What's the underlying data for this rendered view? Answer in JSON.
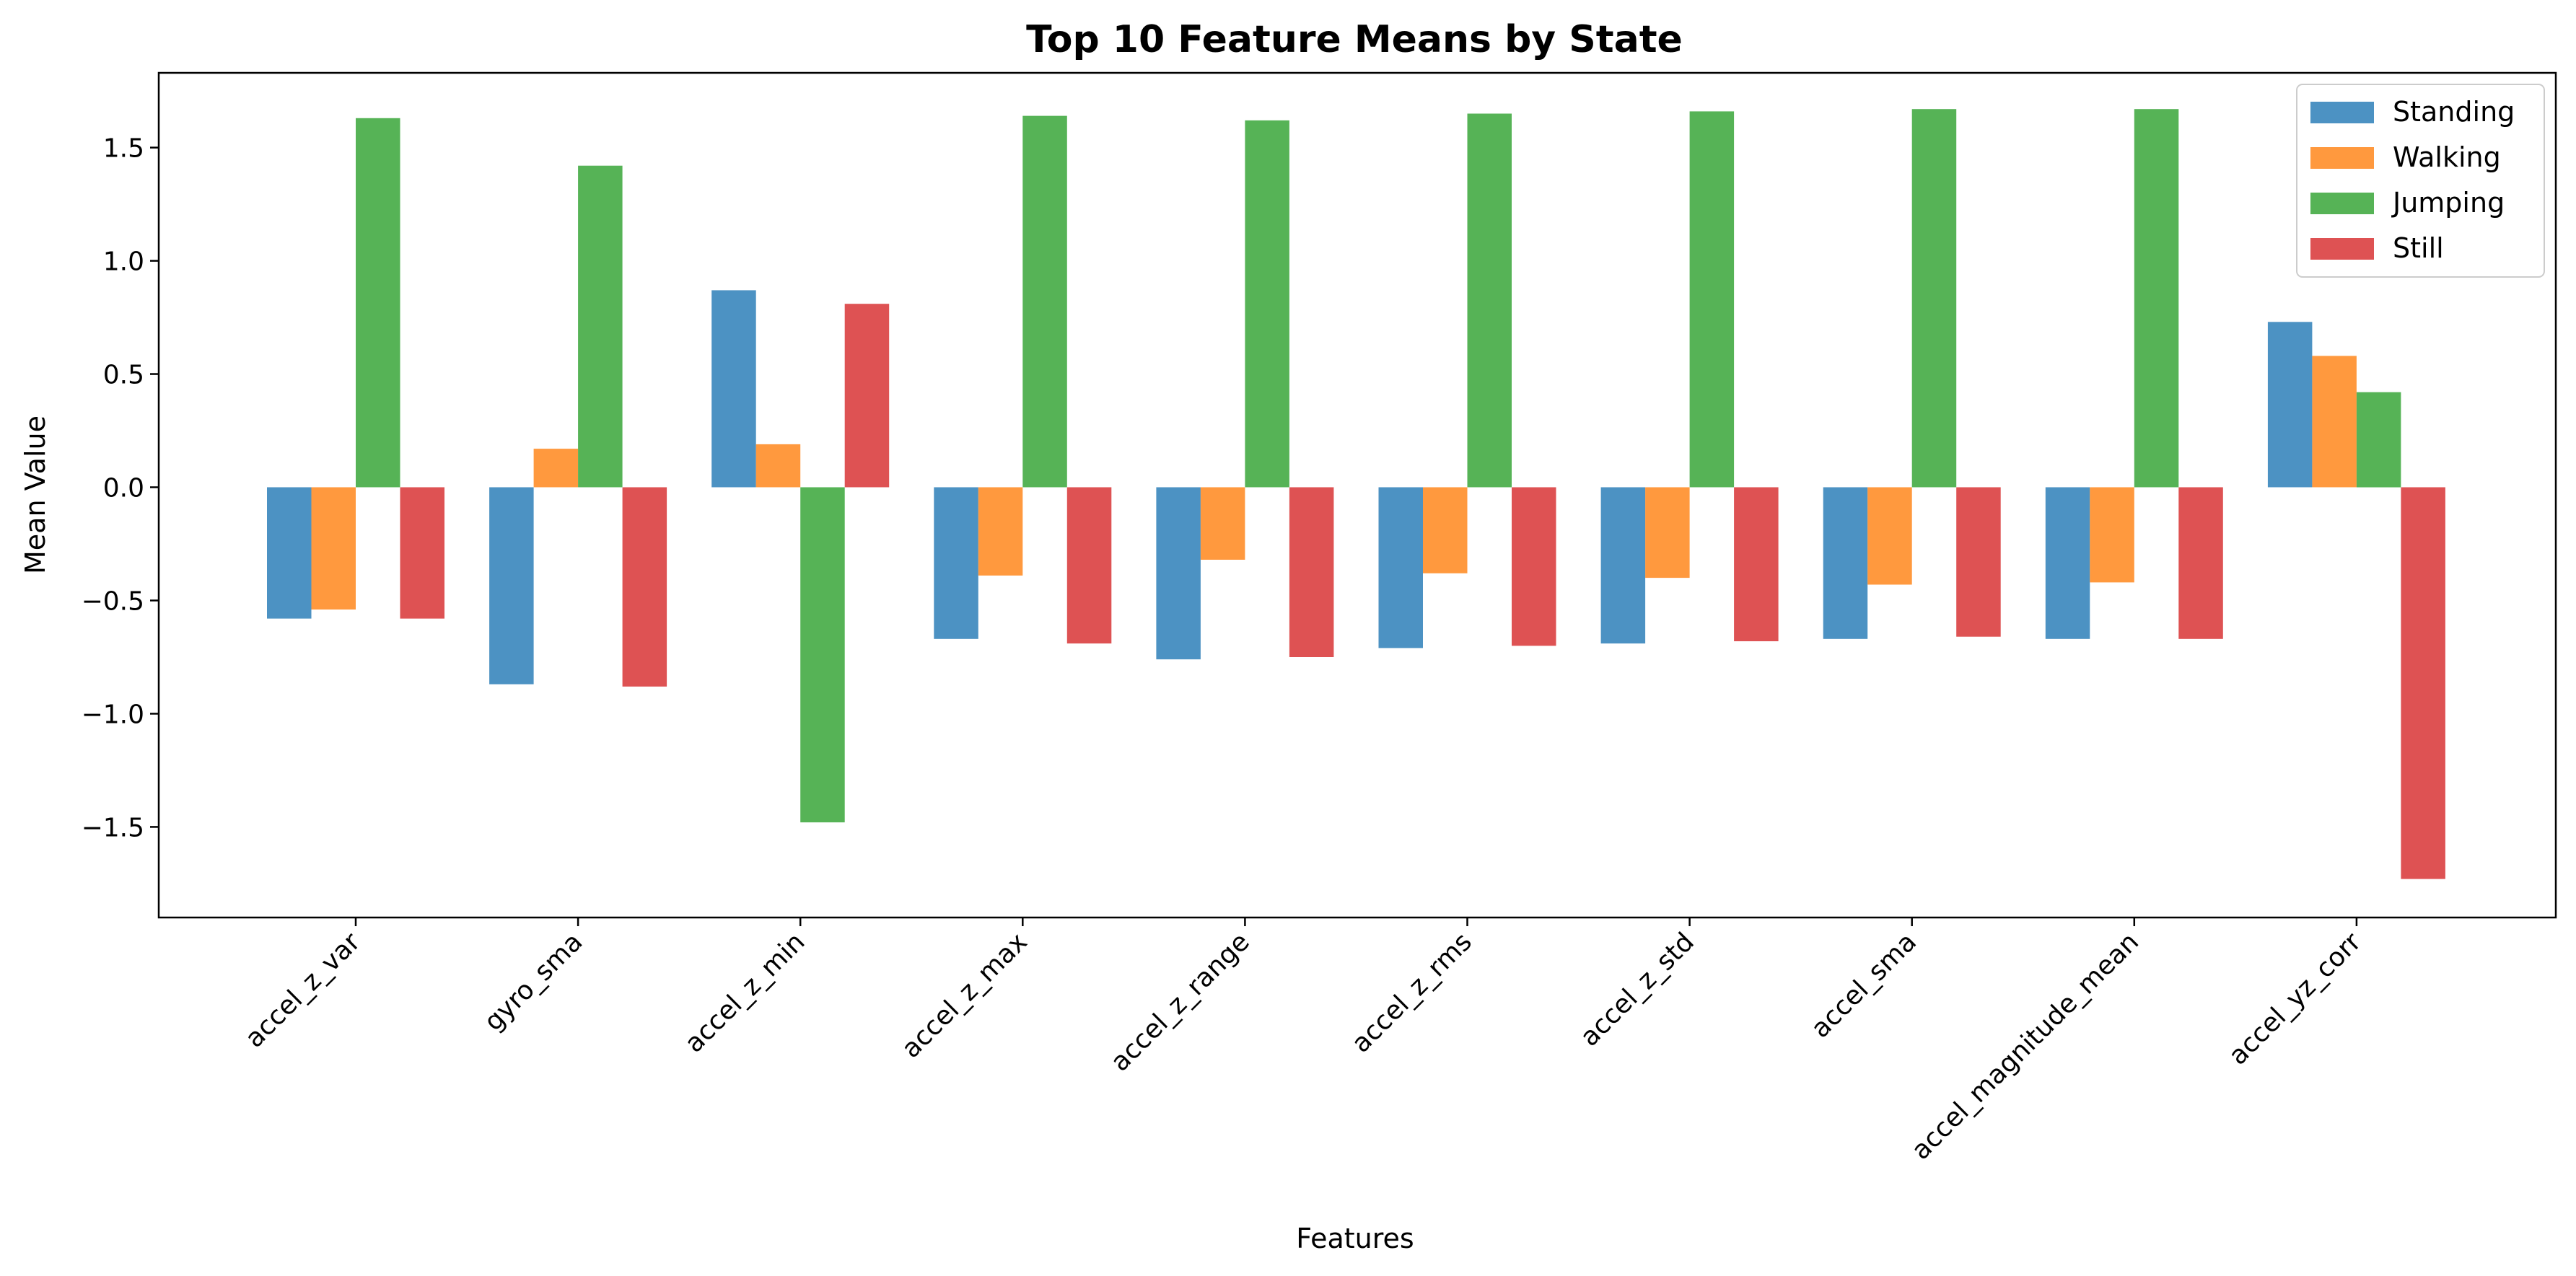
{
  "chart_data": {
    "type": "bar",
    "title": "Top 10 Feature Means by State",
    "xlabel": "Features",
    "ylabel": "Mean Value",
    "ylim": [
      -1.9,
      1.83
    ],
    "yticks": [
      -1.5,
      -1.0,
      -0.5,
      0.0,
      0.5,
      1.0,
      1.5
    ],
    "ytick_labels": [
      "−1.5",
      "−1.0",
      "−0.5",
      "0.0",
      "0.5",
      "1.0",
      "1.5"
    ],
    "grid": false,
    "legend_position": "top-right",
    "categories": [
      "accel_z_var",
      "gyro_sma",
      "accel_z_min",
      "accel_z_max",
      "accel_z_range",
      "accel_z_rms",
      "accel_z_std",
      "accel_sma",
      "accel_magnitude_mean",
      "accel_yz_corr"
    ],
    "series": [
      {
        "name": "Standing",
        "color": "#1f77b4",
        "values": [
          -0.58,
          -0.87,
          0.87,
          -0.67,
          -0.76,
          -0.71,
          -0.69,
          -0.67,
          -0.67,
          0.73
        ]
      },
      {
        "name": "Walking",
        "color": "#ff7f0e",
        "values": [
          -0.54,
          0.17,
          0.19,
          -0.39,
          -0.32,
          -0.38,
          -0.4,
          -0.43,
          -0.42,
          0.58
        ]
      },
      {
        "name": "Jumping",
        "color": "#2ca02c",
        "values": [
          1.63,
          1.42,
          -1.48,
          1.64,
          1.62,
          1.65,
          1.66,
          1.67,
          1.67,
          0.42
        ]
      },
      {
        "name": "Still",
        "color": "#d62728",
        "values": [
          -0.58,
          -0.88,
          0.81,
          -0.69,
          -0.75,
          -0.7,
          -0.68,
          -0.66,
          -0.67,
          -1.73
        ]
      }
    ]
  }
}
